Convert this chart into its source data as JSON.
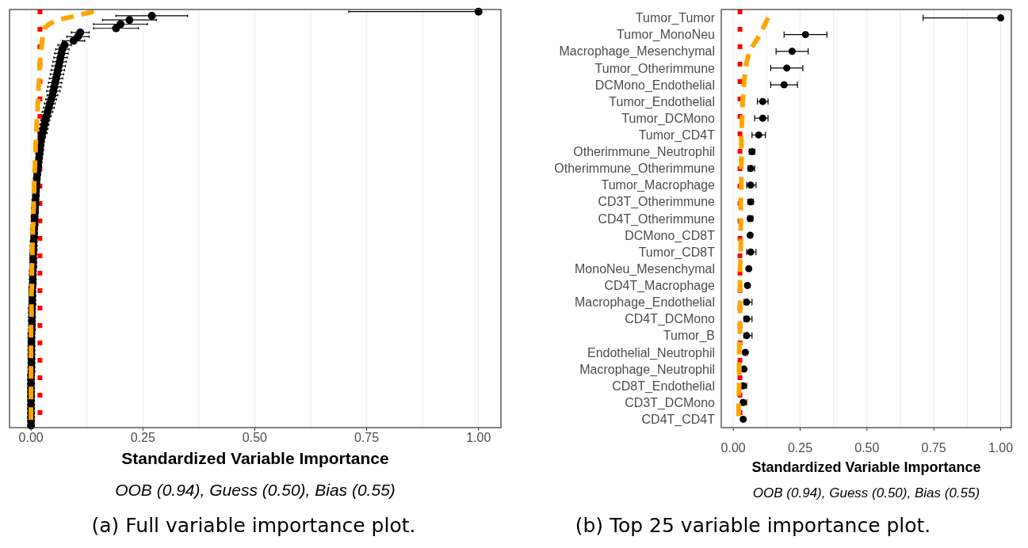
{
  "chart_data": [
    {
      "type": "scatter",
      "orientation": "horizontal",
      "title": "(a) Full variable importance plot.",
      "xlabel": "Standardized Variable Importance",
      "annotations": [
        "OOB (0.94), Guess (0.50), Bias (0.55)"
      ],
      "categories": [
        null,
        null,
        null,
        null,
        null,
        null,
        null,
        null,
        null,
        null,
        null,
        null,
        null,
        null,
        null,
        null,
        null,
        null,
        null,
        null,
        null,
        null,
        null,
        null,
        null,
        null,
        null,
        null,
        null,
        null,
        null,
        null,
        null,
        null,
        null,
        null,
        null,
        null,
        null,
        null,
        null,
        null,
        null,
        null,
        null,
        null,
        null,
        null,
        null,
        null,
        null,
        null,
        null,
        null,
        null,
        null,
        null,
        null,
        null,
        null,
        null,
        null,
        null,
        null,
        null,
        null,
        null,
        null,
        null,
        null,
        null,
        null,
        null,
        null,
        null,
        null,
        null,
        null,
        null,
        null,
        null,
        null,
        null,
        null,
        null,
        null,
        null,
        null,
        null,
        null,
        null,
        null,
        null,
        null,
        null,
        null,
        null,
        null,
        null,
        null
      ],
      "xlim": [
        -0.048,
        1.05
      ],
      "xticks": [
        {
          "value": 0,
          "label": "0.00"
        },
        {
          "value": 0.125,
          "label": null
        },
        {
          "value": 0.25,
          "label": "0.25"
        },
        {
          "value": 0.375,
          "label": null
        },
        {
          "value": 0.5,
          "label": "0.50"
        },
        {
          "value": 0.625,
          "label": null
        },
        {
          "value": 0.75,
          "label": "0.75"
        },
        {
          "value": 0.875,
          "label": null
        },
        {
          "value": 1,
          "label": "1.00"
        }
      ],
      "grid": "x",
      "tick_labels": "x",
      "series": [
        {
          "marker": "circle",
          "color": "#000000",
          "values": [
            1.0,
            0.27,
            0.22,
            0.2,
            0.19,
            0.11,
            0.105,
            0.095,
            0.075,
            0.07,
            0.068,
            0.066,
            0.064,
            0.062,
            0.06,
            0.058,
            0.056,
            0.054,
            0.052,
            0.05,
            0.048,
            0.045,
            0.042,
            0.04,
            0.037,
            0.035,
            0.032,
            0.03,
            0.028,
            0.026,
            0.024,
            0.022,
            0.021,
            0.02,
            0.019,
            0.018,
            0.017,
            0.016,
            0.015,
            0.014,
            0.013,
            0.012,
            0.012,
            0.011,
            0.011,
            0.01,
            0.01,
            0.009,
            0.009,
            0.008,
            0.008,
            0.008,
            0.007,
            0.007,
            0.007,
            0.006,
            0.006,
            0.006,
            0.005,
            0.005,
            0.005,
            0.005,
            0.004,
            0.004,
            0.004,
            0.004,
            0.003,
            0.003,
            0.003,
            0.003,
            0.003,
            0.002,
            0.002,
            0.002,
            0.002,
            0.002,
            0.002,
            0.001,
            0.001,
            0.001,
            0.001,
            0.001,
            0.001,
            0.001,
            0.001,
            0.001,
            0.001,
            0,
            0,
            0,
            0,
            0,
            0,
            0,
            0,
            0,
            0,
            0,
            0,
            0
          ],
          "errors": [
            [
              0.71,
              1.0
            ],
            [
              0.19,
              0.35
            ],
            [
              0.16,
              0.28
            ],
            [
              0.14,
              0.26
            ],
            [
              0.14,
              0.24
            ],
            [
              0.09,
              0.13
            ],
            [
              0.08,
              0.13
            ],
            [
              0.07,
              0.12
            ],
            0.015,
            0.015,
            0.015,
            0.015,
            0.015,
            0.015,
            0.015,
            0.015,
            0.015,
            0.015,
            0.015,
            0.015,
            0.012,
            0.012,
            0.012,
            0.012,
            0.012,
            0.01,
            0.01,
            0.01,
            0.01,
            0.01,
            0.008,
            0.008,
            0.008,
            0.008,
            0.008,
            0.006,
            0.006,
            0.006,
            0.006,
            0.006,
            null,
            null,
            null,
            null,
            null,
            null,
            null,
            null,
            null,
            null,
            null,
            null,
            null,
            null,
            null,
            null,
            null,
            null,
            null,
            null,
            null,
            null,
            null,
            null,
            null,
            null,
            null,
            null,
            null,
            null,
            null,
            null,
            null,
            null,
            null,
            null,
            null,
            null,
            null,
            null,
            null,
            null,
            null,
            null,
            null,
            null,
            null,
            null,
            null,
            null,
            null,
            null,
            null,
            null,
            null,
            null,
            null,
            null,
            null,
            null
          ]
        },
        {
          "type": "line",
          "color": "#ffa500",
          "line_style": "dashed",
          "values": [
            0.14,
            0.1,
            0.06,
            0.04,
            0.03,
            0.028,
            0.026,
            0.025,
            0.024,
            0.023,
            0.022,
            0.021,
            0.02,
            0.02,
            0.019,
            0.019,
            0.018,
            0.018,
            0.017,
            0.017,
            0.016,
            0.016,
            0.015,
            0.015,
            0.014,
            0.014,
            0.013,
            0.013,
            0.012,
            0.012,
            0.011,
            0.011,
            0.01,
            0.01,
            0.01,
            0.009,
            0.009,
            0.009,
            0.008,
            0.008,
            0.008,
            0.007,
            0.007,
            0.007,
            0.006,
            0.006,
            0.006,
            0.006,
            0.005,
            0.005,
            0.005,
            0.005,
            0.004,
            0.004,
            0.004,
            0.004,
            0.003,
            0.003,
            0.003,
            0.003,
            0.003,
            0.002,
            0.002,
            0.002,
            0.002,
            0.002,
            0.002,
            0.001,
            0.001,
            0.001,
            0.001,
            0.001,
            0.001,
            0.001,
            0,
            0,
            0,
            0,
            0,
            0,
            0,
            0,
            0,
            0,
            0,
            0,
            0,
            0,
            0,
            0,
            0,
            0,
            0,
            0,
            0,
            0,
            0,
            0,
            0,
            0
          ]
        }
      ],
      "ref_lines": [
        {
          "axis": "x",
          "value": 0.02,
          "color": "#ff0000",
          "line_style": "dotted"
        }
      ]
    },
    {
      "type": "scatter",
      "orientation": "horizontal",
      "title": "(b) Top 25 variable importance plot.",
      "xlabel": "Standardized Variable Importance",
      "annotations": [
        "OOB (0.94), Guess (0.50), Bias (0.55)"
      ],
      "categories": [
        "Tumor_Tumor",
        "Tumor_MonoNeu",
        "Macrophage_Mesenchymal",
        "Tumor_Otherimmune",
        "DCMono_Endothelial",
        "Tumor_Endothelial",
        "Tumor_DCMono",
        "Tumor_CD4T",
        "Otherimmune_Neutrophil",
        "Otherimmune_Otherimmune",
        "Tumor_Macrophage",
        "CD3T_Otherimmune",
        "CD4T_Otherimmune",
        "DCMono_CD8T",
        "Tumor_CD8T",
        "MonoNeu_Mesenchymal",
        "CD4T_Macrophage",
        "Macrophage_Endothelial",
        "CD4T_DCMono",
        "Tumor_B",
        "Endothelial_Neutrophil",
        "Macrophage_Neutrophil",
        "CD8T_Endothelial",
        "CD3T_DCMono",
        "CD4T_CD4T"
      ],
      "xlim": [
        -0.045,
        1.04
      ],
      "xticks": [
        {
          "value": 0,
          "label": "0.00"
        },
        {
          "value": 0.125,
          "label": null
        },
        {
          "value": 0.25,
          "label": "0.25"
        },
        {
          "value": 0.375,
          "label": null
        },
        {
          "value": 0.5,
          "label": "0.50"
        },
        {
          "value": 0.625,
          "label": null
        },
        {
          "value": 0.75,
          "label": "0.75"
        },
        {
          "value": 0.875,
          "label": null
        },
        {
          "value": 1,
          "label": "1.00"
        }
      ],
      "grid": "x",
      "series": [
        {
          "marker": "circle",
          "color": "#000000",
          "values": [
            1.0,
            0.27,
            0.22,
            0.2,
            0.19,
            0.11,
            0.11,
            0.095,
            0.07,
            0.065,
            0.065,
            0.065,
            0.063,
            0.063,
            0.065,
            0.058,
            0.053,
            0.05,
            0.05,
            0.05,
            0.045,
            0.04,
            0.037,
            0.037,
            0.037
          ],
          "errors": [
            [
              0.71,
              1.0
            ],
            [
              0.19,
              0.35
            ],
            [
              0.16,
              0.28
            ],
            [
              0.14,
              0.26
            ],
            [
              0.14,
              0.24
            ],
            [
              0.09,
              0.13
            ],
            [
              0.08,
              0.13
            ],
            [
              0.07,
              0.12
            ],
            [
              0.06,
              0.08
            ],
            [
              0.055,
              0.08
            ],
            [
              0.05,
              0.085
            ],
            [
              0.055,
              0.075
            ],
            [
              0.055,
              0.073
            ],
            null,
            [
              0.05,
              0.085
            ],
            null,
            null,
            [
              0.04,
              0.07
            ],
            [
              0.04,
              0.07
            ],
            [
              0.04,
              0.07
            ],
            null,
            null,
            [
              0.03,
              0.05
            ],
            [
              0.03,
              0.05
            ],
            null
          ]
        },
        {
          "type": "line",
          "color": "#ffa500",
          "line_style": "dashed",
          "values": [
            0.13,
            0.1,
            0.06,
            0.045,
            0.04,
            0.035,
            0.033,
            0.03,
            0.03,
            0.03,
            0.03,
            0.028,
            0.028,
            0.028,
            0.028,
            0.025,
            0.025,
            0.025,
            0.025,
            0.025,
            0.022,
            0.022,
            0.022,
            0.02,
            0.02
          ]
        }
      ],
      "ref_lines": [
        {
          "axis": "x",
          "value": 0.025,
          "color": "#ff0000",
          "line_style": "dotted"
        }
      ]
    }
  ]
}
